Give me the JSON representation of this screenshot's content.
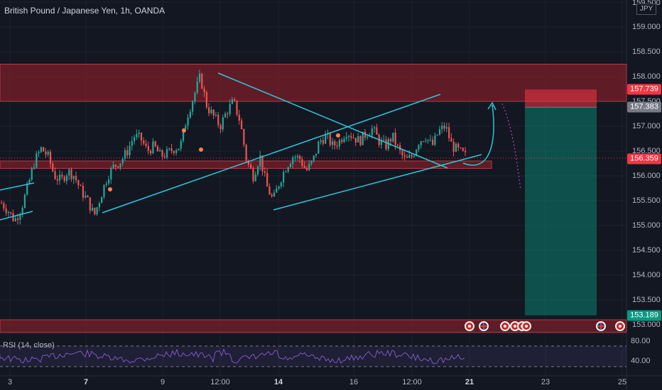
{
  "header": {
    "symbol_title": "British Pound / Japanese Yen, 1h, OANDA"
  },
  "rsi": {
    "label": "RSI (14, close)",
    "ticks": [
      "80.00",
      "40.00"
    ]
  },
  "price_axis": {
    "currency": "JPY",
    "ticks": [
      "159.500",
      "159.000",
      "158.500",
      "158.000",
      "157.500",
      "157.000",
      "156.500",
      "156.000",
      "155.500",
      "155.000",
      "154.500",
      "154.000",
      "153.500",
      "153.000"
    ],
    "labels": [
      {
        "text": "157.739",
        "color": "#f23645"
      },
      {
        "text": "157.383",
        "color": "#787b86"
      },
      {
        "text": "156.359",
        "color": "#f23645"
      },
      {
        "text": "153.189",
        "color": "#089981"
      }
    ]
  },
  "time_axis": {
    "ticks": [
      {
        "text": "3",
        "bold": false
      },
      {
        "text": "7",
        "bold": true
      },
      {
        "text": "9",
        "bold": false
      },
      {
        "text": "12:00",
        "bold": false
      },
      {
        "text": "14",
        "bold": true
      },
      {
        "text": "16",
        "bold": false
      },
      {
        "text": "12:00",
        "bold": false
      },
      {
        "text": "21",
        "bold": true
      },
      {
        "text": "23",
        "bold": false
      },
      {
        "text": "25",
        "bold": false
      }
    ]
  },
  "events": [
    "red",
    "uk",
    "red",
    "red",
    "red",
    "red",
    "uk",
    "red"
  ],
  "colors": {
    "bg": "#131722",
    "up": "#26a69a",
    "down": "#ef5350",
    "zone": "#7a1f28",
    "trend": "#2ec6d8",
    "rsi": "#7e57c2"
  },
  "chart_data": {
    "type": "candlestick",
    "title": "British Pound / Japanese Yen, 1h, OANDA",
    "ylim": [
      152.85,
      159.5
    ],
    "current_price": 156.359,
    "zones": [
      {
        "from": 157.5,
        "to": 158.25
      },
      {
        "from": 156.15,
        "to": 156.3
      },
      {
        "from": 152.85,
        "to": 153.1
      }
    ],
    "short_position": {
      "entry": 157.383,
      "stop": 157.739,
      "target": 153.189
    },
    "rsi_levels": [
      80,
      40
    ],
    "price_path": [
      155.45,
      155.3,
      155.1,
      155.35,
      155.8,
      156.3,
      156.55,
      156.4,
      156.0,
      155.9,
      156.1,
      156.0,
      155.7,
      155.5,
      155.2,
      155.6,
      156.0,
      156.2,
      156.3,
      156.5,
      156.8,
      156.75,
      156.5,
      156.6,
      156.4,
      156.45,
      156.55,
      156.6,
      157.2,
      157.6,
      158.0,
      157.4,
      157.2,
      157.0,
      157.3,
      157.5,
      157.1,
      156.3,
      156.0,
      156.4,
      155.8,
      155.5,
      155.9,
      156.2,
      156.4,
      156.35,
      156.1,
      156.3,
      156.7,
      156.8,
      156.6,
      156.7,
      156.9,
      156.8,
      156.7,
      156.85,
      156.95,
      156.7,
      156.6,
      156.8,
      156.5,
      156.3,
      156.4,
      156.7,
      156.8,
      156.6,
      156.9,
      157.0,
      156.6,
      156.5,
      156.4
    ]
  }
}
